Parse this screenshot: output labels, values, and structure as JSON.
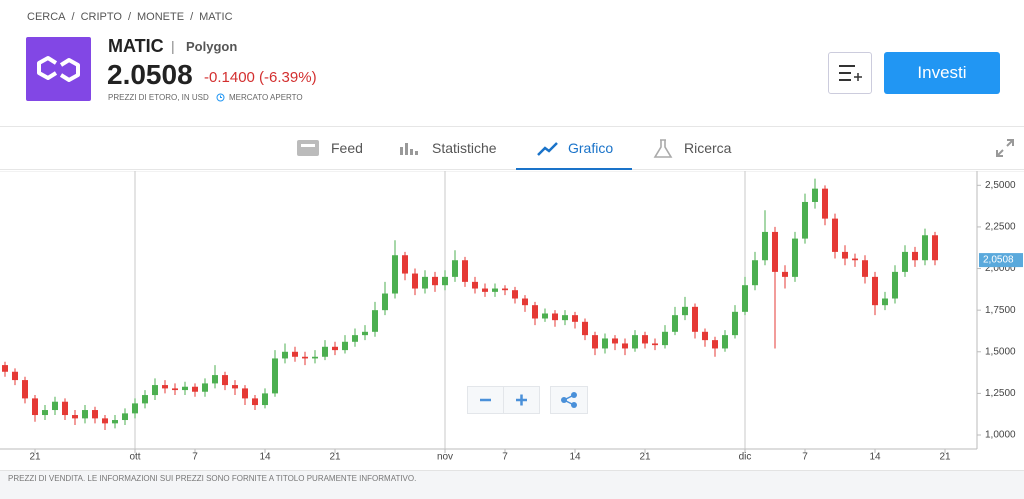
{
  "breadcrumb": [
    "CERCA",
    "CRIPTO",
    "MONETE",
    "MATIC"
  ],
  "breadcrumb_separator": "/",
  "header": {
    "symbol": "MATIC",
    "divider": "|",
    "name": "Polygon",
    "price": "2.0508",
    "change": "-0.1400 (-6.39%)",
    "price_note": "PREZZI DI ETORO, IN USD",
    "market_status": "MERCATO APERTO"
  },
  "invest_button": "Investi",
  "tabs": [
    "Feed",
    "Statistiche",
    "Grafico",
    "Ricerca"
  ],
  "chart_data": {
    "type": "candlestick",
    "up_color": "#4caf50",
    "down_color": "#e53935",
    "categories": [
      null,
      null,
      null,
      "21",
      null,
      null,
      null,
      null,
      null,
      null,
      null,
      null,
      null,
      "ott",
      null,
      null,
      null,
      null,
      null,
      "7",
      null,
      null,
      null,
      null,
      null,
      null,
      "14",
      null,
      null,
      null,
      null,
      null,
      null,
      "21",
      null,
      null,
      null,
      null,
      null,
      null,
      null,
      null,
      null,
      null,
      "nov",
      null,
      null,
      null,
      null,
      null,
      "7",
      null,
      null,
      null,
      null,
      null,
      null,
      "14",
      null,
      null,
      null,
      null,
      null,
      null,
      "21",
      null,
      null,
      null,
      null,
      null,
      null,
      null,
      null,
      null,
      "dic",
      null,
      null,
      null,
      null,
      null,
      "7",
      null,
      null,
      null,
      null,
      null,
      null,
      "14",
      null,
      null,
      null,
      null,
      null,
      null,
      "21"
    ],
    "open": [
      1.42,
      1.38,
      1.33,
      1.22,
      1.12,
      1.15,
      1.2,
      1.12,
      1.1,
      1.15,
      1.1,
      1.07,
      1.09,
      1.13,
      1.19,
      1.24,
      1.3,
      1.28,
      1.27,
      1.29,
      1.26,
      1.31,
      1.36,
      1.3,
      1.28,
      1.22,
      1.18,
      1.25,
      1.46,
      1.5,
      1.47,
      1.46,
      1.47,
      1.53,
      1.51,
      1.56,
      1.6,
      1.62,
      1.75,
      1.85,
      2.08,
      1.97,
      1.88,
      1.95,
      1.9,
      1.95,
      2.05,
      1.92,
      1.88,
      1.86,
      1.88,
      1.87,
      1.82,
      1.78,
      1.7,
      1.73,
      1.69,
      1.72,
      1.68,
      1.6,
      1.52,
      1.58,
      1.55,
      1.52,
      1.6,
      1.55,
      1.54,
      1.62,
      1.72,
      1.77,
      1.62,
      1.57,
      1.52,
      1.6,
      1.74,
      1.9,
      2.05,
      2.22,
      1.98,
      1.95,
      2.18,
      2.4,
      2.48,
      2.3,
      2.1,
      2.06,
      2.05,
      1.95,
      1.78,
      1.82,
      1.98,
      2.1,
      2.05,
      2.2,
      null
    ],
    "high": [
      1.44,
      1.4,
      1.35,
      1.24,
      1.18,
      1.23,
      1.22,
      1.15,
      1.18,
      1.17,
      1.12,
      1.12,
      1.16,
      1.22,
      1.27,
      1.34,
      1.33,
      1.31,
      1.32,
      1.31,
      1.34,
      1.42,
      1.38,
      1.33,
      1.3,
      1.24,
      1.28,
      1.51,
      1.55,
      1.53,
      1.5,
      1.51,
      1.57,
      1.56,
      1.6,
      1.64,
      1.66,
      1.8,
      1.92,
      2.17,
      2.1,
      2.0,
      1.99,
      1.98,
      1.99,
      2.11,
      2.07,
      1.95,
      1.91,
      1.91,
      1.9,
      1.89,
      1.84,
      1.8,
      1.76,
      1.75,
      1.75,
      1.74,
      1.7,
      1.62,
      1.61,
      1.6,
      1.58,
      1.63,
      1.62,
      1.58,
      1.66,
      1.77,
      1.83,
      1.79,
      1.64,
      1.59,
      1.63,
      1.78,
      1.95,
      2.1,
      2.35,
      2.25,
      2.02,
      2.22,
      2.45,
      2.54,
      2.5,
      2.33,
      2.14,
      2.09,
      2.08,
      1.98,
      1.86,
      2.02,
      2.14,
      2.13,
      2.24,
      2.22,
      null
    ],
    "low": [
      1.35,
      1.3,
      1.19,
      1.08,
      1.09,
      1.12,
      1.09,
      1.06,
      1.07,
      1.07,
      1.03,
      1.04,
      1.06,
      1.1,
      1.16,
      1.21,
      1.25,
      1.24,
      1.24,
      1.23,
      1.23,
      1.28,
      1.27,
      1.24,
      1.18,
      1.15,
      1.16,
      1.23,
      1.43,
      1.44,
      1.42,
      1.43,
      1.45,
      1.48,
      1.49,
      1.53,
      1.57,
      1.59,
      1.72,
      1.82,
      1.93,
      1.84,
      1.85,
      1.86,
      1.87,
      1.92,
      1.89,
      1.85,
      1.83,
      1.83,
      1.84,
      1.79,
      1.74,
      1.66,
      1.68,
      1.65,
      1.66,
      1.64,
      1.57,
      1.48,
      1.49,
      1.51,
      1.48,
      1.5,
      1.52,
      1.51,
      1.52,
      1.6,
      1.69,
      1.58,
      1.53,
      1.47,
      1.5,
      1.58,
      1.72,
      1.87,
      2.02,
      1.52,
      1.88,
      1.92,
      2.15,
      2.36,
      2.26,
      2.06,
      2.02,
      2.01,
      1.91,
      1.72,
      1.75,
      1.79,
      1.95,
      2.01,
      2.02,
      2.02,
      null
    ],
    "close": [
      1.38,
      1.33,
      1.22,
      1.12,
      1.15,
      1.2,
      1.12,
      1.1,
      1.15,
      1.1,
      1.07,
      1.09,
      1.13,
      1.19,
      1.24,
      1.3,
      1.28,
      1.27,
      1.29,
      1.26,
      1.31,
      1.36,
      1.3,
      1.28,
      1.22,
      1.18,
      1.25,
      1.46,
      1.5,
      1.47,
      1.46,
      1.47,
      1.53,
      1.51,
      1.56,
      1.6,
      1.62,
      1.75,
      1.85,
      2.08,
      1.97,
      1.88,
      1.95,
      1.9,
      1.95,
      2.05,
      1.92,
      1.88,
      1.86,
      1.88,
      1.87,
      1.82,
      1.78,
      1.7,
      1.73,
      1.69,
      1.72,
      1.68,
      1.6,
      1.52,
      1.58,
      1.55,
      1.52,
      1.6,
      1.55,
      1.54,
      1.62,
      1.72,
      1.77,
      1.62,
      1.57,
      1.52,
      1.6,
      1.74,
      1.9,
      2.05,
      2.22,
      1.98,
      1.95,
      2.18,
      2.4,
      2.48,
      2.3,
      2.1,
      2.06,
      2.05,
      1.95,
      1.78,
      1.82,
      1.98,
      2.1,
      2.05,
      2.2,
      2.05,
      null
    ],
    "ylim": [
      0.94,
      2.58
    ],
    "yticks": [
      {
        "value": 1.0,
        "label": "1,0000"
      },
      {
        "value": 1.25,
        "label": "1,2500"
      },
      {
        "value": 1.5,
        "label": "1,5000"
      },
      {
        "value": 1.75,
        "label": "1,7500"
      },
      {
        "value": 2.0,
        "label": "2,0000"
      },
      {
        "value": 2.25,
        "label": "2,2500"
      },
      {
        "value": 2.5,
        "label": "2,5000"
      }
    ],
    "grid": false,
    "last_price": {
      "value": 2.0508,
      "label": "2,0508"
    }
  },
  "footer": "PREZZI DI VENDITA. LE INFORMAZIONI SUI PREZZI SONO FORNITE A TITOLO PURAMENTE INFORMATIVO."
}
